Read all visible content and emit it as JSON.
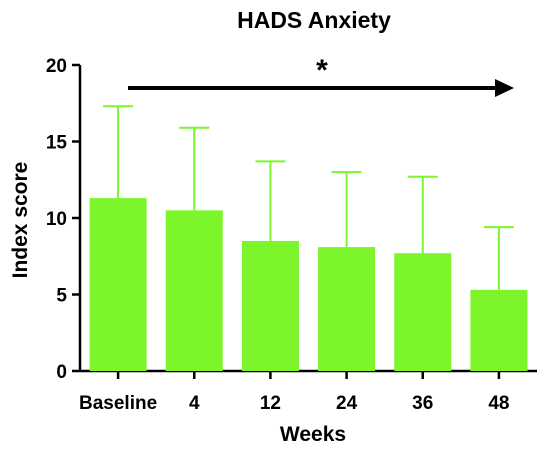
{
  "chart_data": {
    "type": "bar",
    "title": "HADS Anxiety",
    "xlabel": "Weeks",
    "ylabel": "Index score",
    "categories": [
      "Baseline",
      "4",
      "12",
      "24",
      "36",
      "48"
    ],
    "values": [
      11.3,
      10.5,
      8.5,
      8.1,
      7.7,
      5.3
    ],
    "error_upper": [
      17.3,
      15.9,
      13.7,
      13.0,
      12.7,
      9.4
    ],
    "ylim": [
      0,
      20
    ],
    "yticks": [
      0,
      5,
      10,
      15,
      20
    ],
    "grid": false,
    "legend": "none",
    "annotation": "*",
    "bar_color": "#7CF52B",
    "error_color": "#7CF52B",
    "text_color": "#000000"
  }
}
